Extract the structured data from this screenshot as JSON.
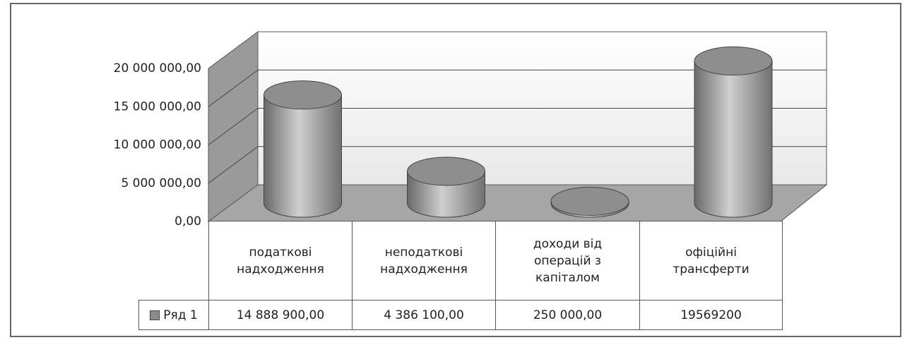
{
  "chart_data": {
    "type": "cylinder",
    "categories": [
      "податкові\nнадходження",
      "неподаткові\nнадходження",
      "доходи від\nоперацій з\nкапіталом",
      "офіційні\nтрансферти"
    ],
    "series": [
      {
        "name": "Ряд 1",
        "color": "#8c8c8c",
        "values": [
          14888900,
          4386100,
          250000,
          19569200
        ],
        "value_labels": [
          "14 888 900,00",
          "4 386 100,00",
          "250 000,00",
          "19569200"
        ]
      }
    ],
    "ylim": [
      0,
      20000000
    ],
    "yticks": [
      {
        "value": 0,
        "label": "0,00"
      },
      {
        "value": 5000000,
        "label": "5 000 000,00"
      },
      {
        "value": 10000000,
        "label": "10 000 000,00"
      },
      {
        "value": 15000000,
        "label": "15 000 000,00"
      },
      {
        "value": 20000000,
        "label": "20 000 000,00"
      }
    ],
    "grid": true
  }
}
